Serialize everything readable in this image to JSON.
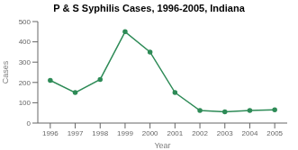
{
  "chart_data": {
    "type": "line",
    "title": "P & S Syphilis Cases, 1996-2005, Indiana",
    "x_label": "Year",
    "y_label": "Cases",
    "x": [
      1996,
      1997,
      1998,
      1999,
      2000,
      2001,
      2002,
      2003,
      2004,
      2005
    ],
    "values": [
      210,
      150,
      215,
      450,
      350,
      150,
      62,
      55,
      62,
      65
    ],
    "xlim": [
      1995.5,
      2005.5
    ],
    "xticks": [
      1996,
      1997,
      1998,
      1999,
      2000,
      2001,
      2002,
      2003,
      2004,
      2005
    ],
    "ylim": [
      0,
      500
    ],
    "yticks": [
      0,
      100,
      200,
      300,
      400,
      500
    ],
    "color": "#2e8b57",
    "marker": "circle"
  }
}
